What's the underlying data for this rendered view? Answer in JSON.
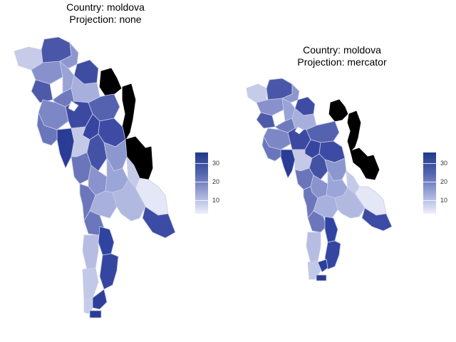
{
  "maps": [
    {
      "title_line1": "Country: moldova",
      "title_line2": "Projection: none",
      "legend_ticks": [
        "30",
        "20",
        "10"
      ]
    },
    {
      "title_line1": "Country: moldova",
      "title_line2": "Projection: mercator",
      "legend_ticks": [
        "30",
        "20",
        "10"
      ]
    }
  ],
  "colors": {
    "low": "#eef0fb",
    "mid": "#8f98d0",
    "high": "#1f3a8a",
    "missing": "#000000",
    "border": "#c9cde8"
  }
}
